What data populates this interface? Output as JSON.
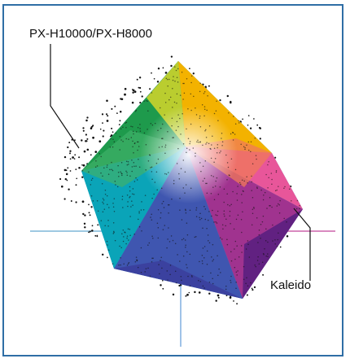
{
  "figure": {
    "labels": {
      "outer_gamut": "PX-H10000/PX-H8000",
      "inner_gamut": "Kaleido"
    },
    "axis_colors": {
      "left": "#9ec9e2",
      "right": "#d98ac0",
      "bottom": "#9fc3e8"
    },
    "frame_color": "#2f6ea5",
    "gamut_colors": {
      "top": "#f5c400",
      "left": "#0f8a3a",
      "center": "#ffffff",
      "cyan": "#00a8d8",
      "right": "#e83a8a",
      "bottom": "#4a1a7a",
      "deep_blue": "#2d3d9a"
    }
  }
}
